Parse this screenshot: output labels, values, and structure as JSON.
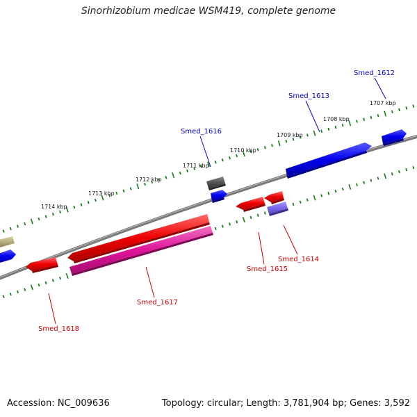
{
  "title": "Sinorhizobium medicae WSM419, complete genome",
  "footer": {
    "accession": "Accession: NC_009636",
    "summary": "Topology: circular; Length: 3,781,904 bp; Genes: 3,592"
  },
  "colors": {
    "background": "#ffffff",
    "backbone": "#808080",
    "ticks": "#1a7a1a",
    "forward_cds": "#0000ee",
    "reverse_cds": "#ee0000",
    "pink_cds": "#e0149a",
    "lavender_cds": "#7b68ee",
    "gray_feature": "#555555",
    "olive_feature": "#b5ad7a",
    "forward_label": "#0000cc",
    "reverse_label": "#cc0000"
  },
  "ticks": [
    "1707 kbp",
    "1708 kbp",
    "1709 kbp",
    "1710 kbp",
    "1711 kbp",
    "1712 kbp",
    "1713 kbp",
    "1714 kbp"
  ],
  "genes": [
    {
      "name": "Smed_1612",
      "strand": "forward"
    },
    {
      "name": "Smed_1613",
      "strand": "forward"
    },
    {
      "name": "Smed_1614",
      "strand": "reverse"
    },
    {
      "name": "Smed_1615",
      "strand": "reverse"
    },
    {
      "name": "Smed_1616",
      "strand": "forward"
    },
    {
      "name": "Smed_1617",
      "strand": "reverse"
    },
    {
      "name": "Smed_1618",
      "strand": "reverse"
    }
  ]
}
